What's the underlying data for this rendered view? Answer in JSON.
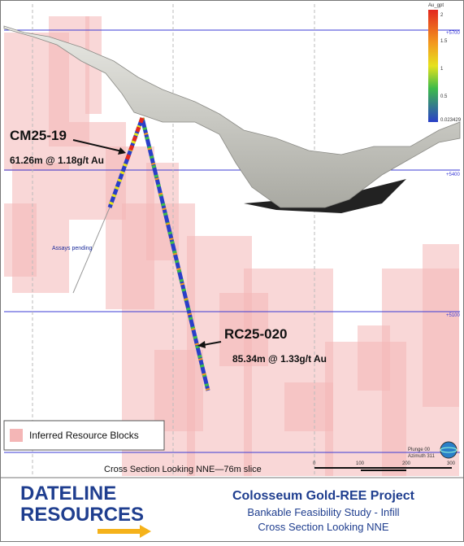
{
  "section": {
    "holes": [
      {
        "name": "CM25-19",
        "intercept": "61.26m @ 1.18g/t Au",
        "note": "Assays pending"
      },
      {
        "name": "RC25-020",
        "intercept": "85.34m @ 1.33g/t Au"
      }
    ],
    "elevations": [
      "+5700",
      "+5400",
      "+5100"
    ],
    "color_scale": {
      "title": "Au_gpt",
      "labels": [
        "2",
        "1.5",
        "1",
        "0.5",
        "0.023429"
      ]
    },
    "legend": "Inferred Resource Blocks",
    "caption": "Cross Section Looking NNE—76m slice",
    "orientation": [
      "Plunge 00",
      "Azimuth 311"
    ],
    "scale_bar": [
      "0",
      "100",
      "200",
      "300"
    ]
  },
  "footer": {
    "logo": [
      "DATELINE",
      "RESOURCES"
    ],
    "title": "Colosseum Gold-REE Project",
    "subtitle": "Bankable Feasibility Study - Infill",
    "subtitle2": "Cross Section Looking NNE"
  }
}
